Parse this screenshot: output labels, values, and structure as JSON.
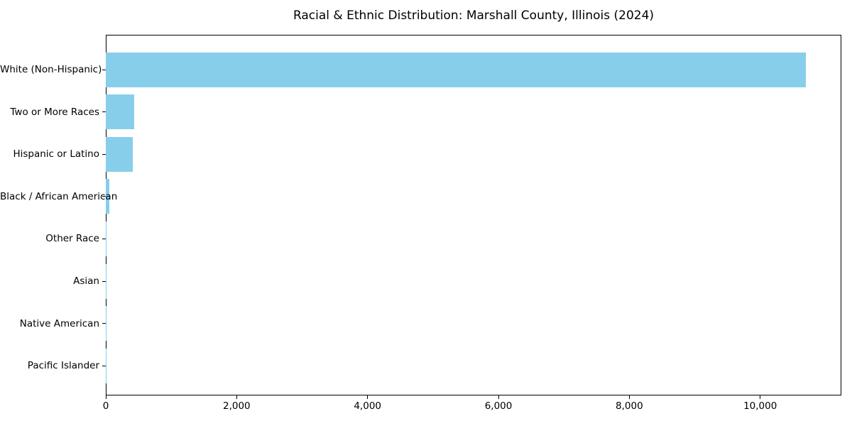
{
  "chart_data": {
    "type": "bar",
    "orientation": "horizontal",
    "title": "Racial & Ethnic Distribution: Marshall County, Illinois (2024)",
    "categories": [
      "White (Non-Hispanic)",
      "Two or More Races",
      "Hispanic or Latino",
      "Black / African American",
      "Other Race",
      "Asian",
      "Native American",
      "Pacific Islander"
    ],
    "values": [
      10700,
      430,
      410,
      55,
      15,
      12,
      8,
      2
    ],
    "bar_color": "#87CEEB",
    "text_color": "#000000",
    "xlabel": "",
    "ylabel": "",
    "xlim": [
      0,
      11240
    ],
    "xticks": [
      0,
      2000,
      4000,
      6000,
      8000,
      10000
    ],
    "xtick_labels": [
      "0",
      "2,000",
      "4,000",
      "6,000",
      "8,000",
      "10,000"
    ],
    "grid": false,
    "legend_position": "none"
  }
}
